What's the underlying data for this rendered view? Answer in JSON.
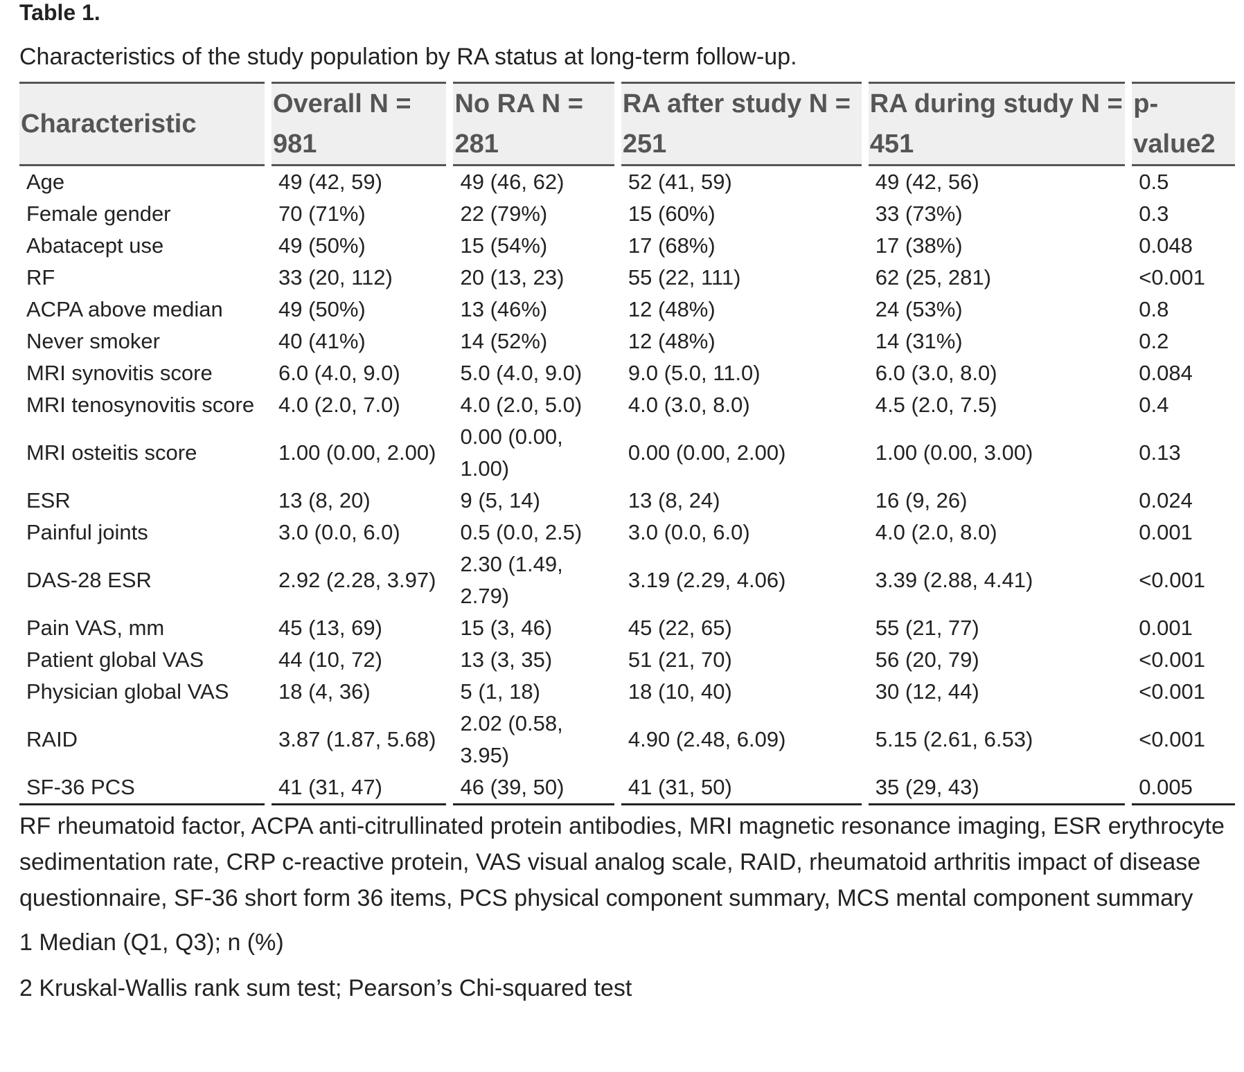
{
  "table_label": "Table 1.",
  "caption": "Characteristics of the study population by RA status at long-term follow-up.",
  "columns": [
    "Characteristic",
    "Overall N = 981",
    "No RA N = 281",
    "RA after study N = 251",
    "RA during study N = 451",
    "p-value2"
  ],
  "rows": [
    [
      "Age",
      "49 (42, 59)",
      "49 (46, 62)",
      "52 (41, 59)",
      "49 (42, 56)",
      "0.5"
    ],
    [
      "Female gender",
      "70 (71%)",
      "22 (79%)",
      "15 (60%)",
      "33 (73%)",
      "0.3"
    ],
    [
      "Abatacept use",
      "49 (50%)",
      "15 (54%)",
      "17 (68%)",
      "17 (38%)",
      "0.048"
    ],
    [
      "RF",
      "33 (20, 112)",
      "20 (13, 23)",
      "55 (22, 111)",
      "62 (25, 281)",
      "<0.001"
    ],
    [
      "ACPA above median",
      "49 (50%)",
      "13 (46%)",
      "12 (48%)",
      "24 (53%)",
      "0.8"
    ],
    [
      "Never smoker",
      "40 (41%)",
      "14 (52%)",
      "12 (48%)",
      "14 (31%)",
      "0.2"
    ],
    [
      "MRI synovitis score",
      "6.0 (4.0, 9.0)",
      "5.0 (4.0, 9.0)",
      "9.0 (5.0, 11.0)",
      "6.0 (3.0, 8.0)",
      "0.084"
    ],
    [
      "MRI tenosynovitis score",
      "4.0 (2.0, 7.0)",
      "4.0 (2.0, 5.0)",
      "4.0 (3.0, 8.0)",
      "4.5 (2.0, 7.5)",
      "0.4"
    ],
    [
      "MRI osteitis score",
      "1.00 (0.00, 2.00)",
      "0.00 (0.00, 1.00)",
      "0.00 (0.00, 2.00)",
      "1.00 (0.00, 3.00)",
      "0.13"
    ],
    [
      "ESR",
      "13 (8, 20)",
      "9 (5, 14)",
      "13 (8, 24)",
      "16 (9, 26)",
      "0.024"
    ],
    [
      "Painful joints",
      "3.0 (0.0, 6.0)",
      "0.5 (0.0, 2.5)",
      "3.0 (0.0, 6.0)",
      "4.0 (2.0, 8.0)",
      "0.001"
    ],
    [
      "DAS-28 ESR",
      "2.92 (2.28, 3.97)",
      "2.30 (1.49, 2.79)",
      "3.19 (2.29, 4.06)",
      "3.39 (2.88, 4.41)",
      "<0.001"
    ],
    [
      "Pain VAS, mm",
      "45 (13, 69)",
      "15 (3, 46)",
      "45 (22, 65)",
      "55 (21, 77)",
      "0.001"
    ],
    [
      "Patient global VAS",
      "44 (10, 72)",
      "13 (3, 35)",
      "51 (21, 70)",
      "56 (20, 79)",
      "<0.001"
    ],
    [
      "Physician global VAS",
      "18 (4, 36)",
      "5 (1, 18)",
      "18 (10, 40)",
      "30 (12, 44)",
      "<0.001"
    ],
    [
      "RAID",
      "3.87 (1.87, 5.68)",
      "2.02 (0.58, 3.95)",
      "4.90 (2.48, 6.09)",
      "5.15 (2.61, 6.53)",
      "<0.001"
    ],
    [
      "SF-36 PCS",
      "41 (31, 47)",
      "46 (39, 50)",
      "41 (31, 50)",
      "35 (29, 43)",
      "0.005"
    ]
  ],
  "footnote": "RF rheumatoid factor, ACPA anti-citrullinated protein antibodies, MRI magnetic resonance imaging, ESR erythrocyte sedimentation rate, CRP c-reactive protein, VAS visual analog scale, RAID, rheumatoid arthritis impact of disease questionnaire, SF-36 short form 36 items, PCS physical component summary, MCS mental component summary",
  "notes": [
    "1 Median (Q1, Q3); n (%)",
    "2 Kruskal-Wallis rank sum test; Pearson’s Chi-squared test"
  ]
}
